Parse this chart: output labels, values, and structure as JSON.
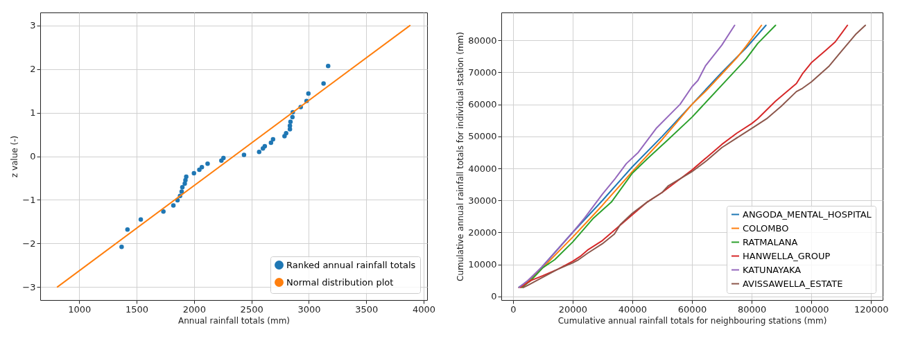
{
  "chart_data": [
    {
      "type": "scatter",
      "xlabel": "Annual rainfall totals (mm)",
      "ylabel": "z value (-)",
      "xlim": [
        660,
        4030
      ],
      "ylim": [
        -3.3,
        3.3
      ],
      "xticks": [
        1000,
        1500,
        2000,
        2500,
        3000,
        3500,
        4000
      ],
      "yticks": [
        -3,
        -2,
        -1,
        0,
        1,
        2,
        3
      ],
      "grid": true,
      "legend": "bottom right",
      "series": [
        {
          "name": "Ranked annual rainfall totals",
          "type": "scatter",
          "marker": "circle",
          "color": "#1f77b4",
          "x": [
            1369,
            1420,
            1536,
            1733,
            1820,
            1856,
            1878,
            1892,
            1898,
            1919,
            1925,
            1932,
            1999,
            2046,
            2068,
            2118,
            2238,
            2256,
            2435,
            2567,
            2600,
            2616,
            2670,
            2688,
            2788,
            2802,
            2835,
            2835,
            2840,
            2857,
            2860,
            2929,
            2980,
            2996,
            3128,
            3168
          ],
          "values": [
            -2.08,
            -1.68,
            -1.45,
            -1.27,
            -1.13,
            -1.01,
            -0.91,
            -0.81,
            -0.71,
            -0.63,
            -0.55,
            -0.47,
            -0.39,
            -0.31,
            -0.25,
            -0.17,
            -0.1,
            -0.04,
            0.03,
            0.1,
            0.18,
            0.23,
            0.31,
            0.39,
            0.46,
            0.53,
            0.62,
            0.7,
            0.79,
            0.9,
            1.01,
            1.13,
            1.27,
            1.44,
            1.67,
            2.07
          ]
        },
        {
          "name": "Normal distribution plot",
          "type": "line",
          "color": "#ff7f0e",
          "x": [
            810,
            3880
          ],
          "values": [
            -3,
            3
          ]
        }
      ]
    },
    {
      "type": "line",
      "xlabel": "Cumulative annual rainfall totals for neighbouring stations (mm)",
      "ylabel": "Cumulative annual rainfall totals for individual station (mm)",
      "xlim": [
        -3900,
        123900
      ],
      "ylim": [
        -1100,
        88700
      ],
      "xticks": [
        0,
        20000,
        40000,
        60000,
        80000,
        100000,
        120000
      ],
      "yticks": [
        0,
        10000,
        20000,
        30000,
        40000,
        50000,
        60000,
        70000,
        80000
      ],
      "grid": true,
      "legend": "bottom right",
      "series": [
        {
          "name": "ANGODA_MENTAL_HOSPITAL",
          "color": "#1f77b4",
          "x": [
            2000,
            6000,
            10000,
            20000,
            30000,
            40000,
            50000,
            60000,
            70000,
            78000,
            84800
          ],
          "values": [
            2900,
            5500,
            9500,
            20000,
            30000,
            40500,
            50000,
            60000,
            70000,
            77500,
            84700
          ]
        },
        {
          "name": "COLOMBO",
          "color": "#ff7f0e",
          "x": [
            2000,
            6000,
            10000,
            20000,
            30000,
            40000,
            50000,
            60000,
            65000,
            70000,
            75000,
            78000,
            83300
          ],
          "values": [
            2800,
            5200,
            9000,
            18500,
            28500,
            39000,
            49000,
            60000,
            64500,
            69500,
            74500,
            78000,
            84700
          ]
        },
        {
          "name": "RATMALANA",
          "color": "#2ca02c",
          "x": [
            3000,
            6000,
            10000,
            14000,
            20000,
            27000,
            33000,
            40000,
            45000,
            52000,
            60000,
            63000,
            70000,
            78000,
            82000,
            88000
          ],
          "values": [
            2800,
            5000,
            9000,
            11500,
            17000,
            24500,
            29500,
            38500,
            43000,
            49000,
            56000,
            59000,
            66000,
            74000,
            79000,
            84700
          ]
        },
        {
          "name": "HANWELLA_GROUP",
          "color": "#d62728",
          "x": [
            2500,
            6000,
            10000,
            15000,
            20000,
            22500,
            25000,
            30000,
            35000,
            40000,
            45000,
            50000,
            55000,
            60000,
            65000,
            70000,
            75000,
            80000,
            82000,
            88000,
            95000,
            97000,
            100000,
            105000,
            108000,
            110000,
            112100
          ],
          "values": [
            2800,
            5000,
            6500,
            8500,
            11000,
            12500,
            14500,
            17500,
            21500,
            25500,
            29500,
            32500,
            36000,
            39500,
            43500,
            47500,
            51000,
            54000,
            55500,
            61000,
            66500,
            69500,
            73000,
            77000,
            79500,
            82000,
            84700
          ]
        },
        {
          "name": "KATUNAYAKA",
          "color": "#9467bd",
          "x": [
            2000,
            5000,
            10000,
            20000,
            24000,
            30000,
            34000,
            38000,
            42000,
            48000,
            56000,
            60000,
            62000,
            64500,
            70000,
            74300
          ],
          "values": [
            2800,
            5000,
            9500,
            20000,
            24500,
            32000,
            36500,
            41500,
            45000,
            52500,
            60000,
            65500,
            67500,
            72000,
            78500,
            84700
          ]
        },
        {
          "name": "AVISSAWELLA_ESTATE",
          "color": "#8c564b",
          "x": [
            3500,
            6000,
            10000,
            15000,
            20000,
            22000,
            25000,
            30000,
            34000,
            36000,
            40000,
            45000,
            50000,
            52000,
            60000,
            65000,
            70000,
            75000,
            80000,
            85000,
            90000,
            95000,
            97000,
            100000,
            106000,
            110000,
            115000,
            118100
          ],
          "values": [
            2800,
            4000,
            6000,
            8500,
            10500,
            11500,
            13500,
            16500,
            19500,
            22500,
            26000,
            29500,
            32500,
            34500,
            39000,
            42500,
            46500,
            49500,
            52500,
            55500,
            59500,
            64000,
            65000,
            67000,
            72000,
            76500,
            82000,
            84700
          ]
        }
      ]
    }
  ]
}
